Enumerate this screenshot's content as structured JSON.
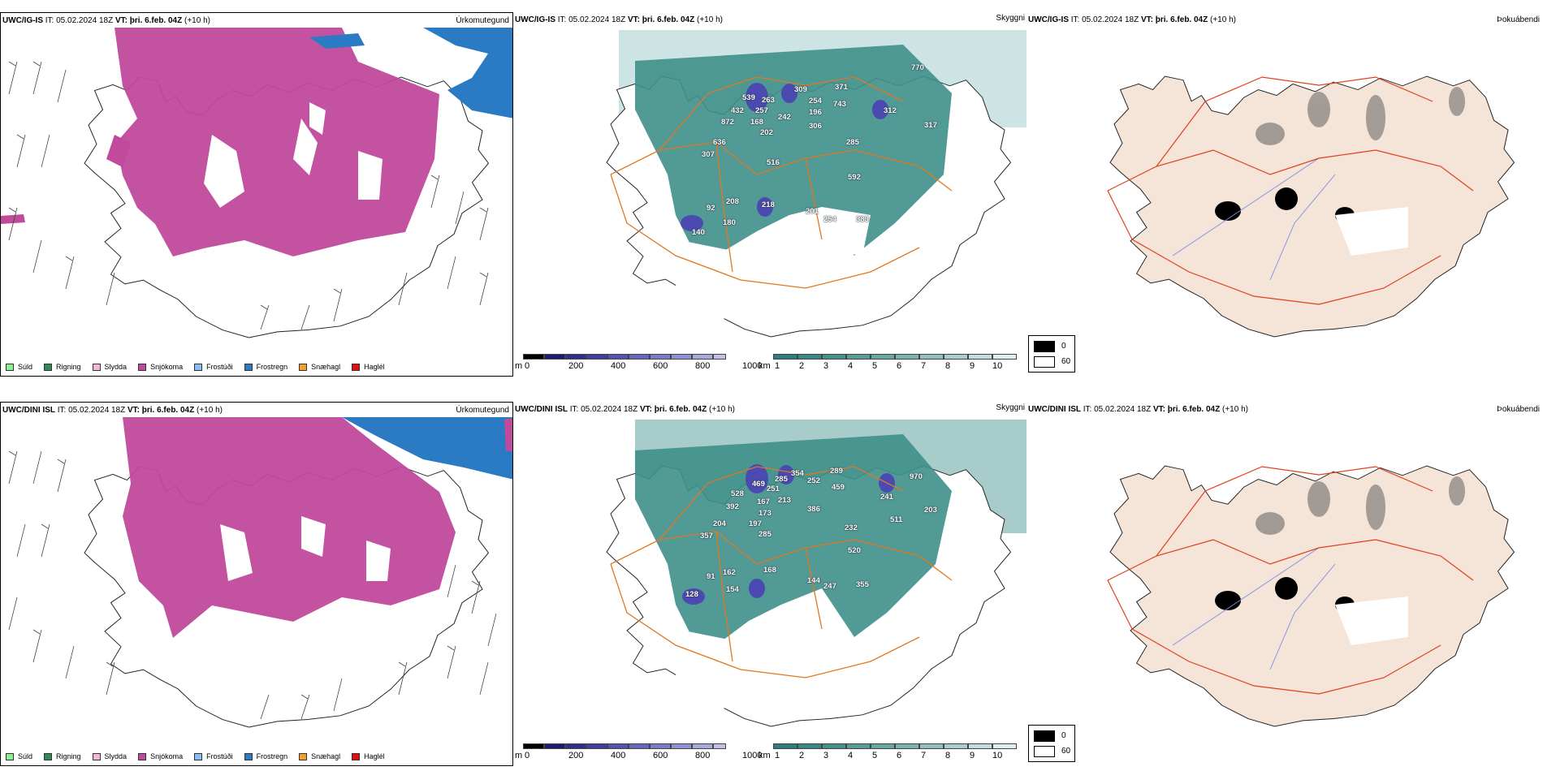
{
  "rows": [
    {
      "model": "UWC/IG-IS",
      "it_label": "IT:",
      "it_value": "05.02.2024 18Z",
      "vt_label": "VT:",
      "vt_value": "þri. 6.feb. 04Z",
      "lead": "(+10 h)",
      "numbers": [
        "539",
        "263",
        "309",
        "371",
        "770",
        "432",
        "257",
        "254",
        "743",
        "312",
        "872",
        "168",
        "242",
        "196",
        "317",
        "202",
        "306",
        "636",
        "285",
        "307",
        "516",
        "592",
        "208",
        "92",
        "218",
        "201",
        "254",
        "383",
        "180",
        "140"
      ]
    },
    {
      "model": "UWC/DINI ISL",
      "it_label": "IT:",
      "it_value": "05.02.2024 18Z",
      "vt_label": "VT:",
      "vt_value": "þri. 6.feb. 04Z",
      "lead": "(+10 h)",
      "numbers": [
        "354",
        "289",
        "970",
        "469",
        "285",
        "252",
        "528",
        "251",
        "459",
        "241",
        "392",
        "213",
        "203",
        "167",
        "386",
        "511",
        "204",
        "173",
        "357",
        "197",
        "232",
        "285",
        "520",
        "91",
        "162",
        "168",
        "144",
        "247",
        "355",
        "154",
        "128"
      ]
    }
  ],
  "panel_titles": {
    "precip_type": "Úrkomutegund",
    "cloud": "Skyggni",
    "fog": "Þokuábendi"
  },
  "precip_legend": [
    {
      "label": "Súld",
      "color": "#90ee90"
    },
    {
      "label": "Rigning",
      "color": "#2e8b57"
    },
    {
      "label": "Slydda",
      "color": "#f4b6d6"
    },
    {
      "label": "Snjókoma",
      "color": "#c04a9c"
    },
    {
      "label": "Frostúði",
      "color": "#87bff0"
    },
    {
      "label": "Frostregn",
      "color": "#2b7ac4"
    },
    {
      "label": "Snæhagl",
      "color": "#f0a030"
    },
    {
      "label": "Haglél",
      "color": "#e01010"
    }
  ],
  "cloud_base_colorbar": {
    "unit": "m",
    "ticks": [
      "0",
      "200",
      "400",
      "600",
      "800",
      "1000"
    ],
    "colors": [
      "#000000",
      "#1c1c6e",
      "#2e2e8c",
      "#3f3fa0",
      "#5252b0",
      "#6666bc",
      "#7a7ac8",
      "#9090d2",
      "#a8a8dc",
      "#c0c0e8"
    ]
  },
  "visibility_colorbar": {
    "unit": "km",
    "ticks": [
      "1",
      "2",
      "3",
      "4",
      "5",
      "6",
      "7",
      "8",
      "9",
      "10"
    ],
    "colors": [
      "#2e7f7a",
      "#3a8884",
      "#47918d",
      "#579c98",
      "#67a7a3",
      "#7ab3b0",
      "#90c0bd",
      "#a8cfcc",
      "#c2dedc",
      "#dcefee"
    ]
  },
  "fog_legend": [
    {
      "label": "0",
      "color": "#000000"
    },
    {
      "label": "60",
      "color": "#ffffff"
    }
  ],
  "colors": {
    "snow": "#c04a9c",
    "freezing_rain": "#2b7ac4",
    "vis_teal": "#3f8f8a",
    "roads": "#e07820",
    "fog_land": "#f5e4d8",
    "fog_roads": "#e04020",
    "rivers": "#7a8fe0"
  }
}
